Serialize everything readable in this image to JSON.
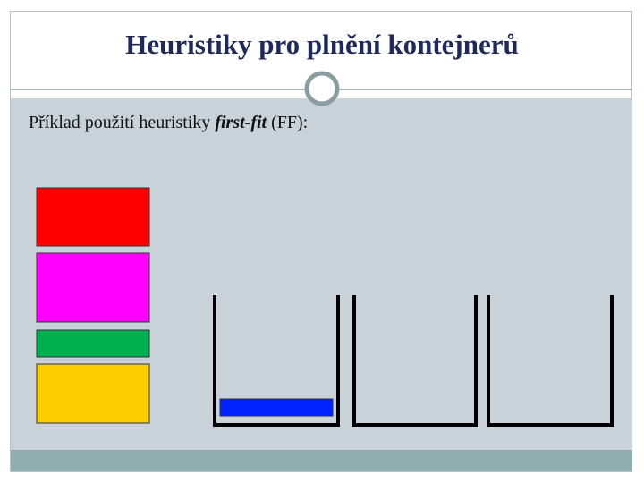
{
  "header": {
    "title": "Heuristiky pro plnění kontejnerů"
  },
  "body": {
    "intro": "Příklad použití heuristiky ",
    "term": "first-fit",
    "suffix": " (FF):"
  }
}
